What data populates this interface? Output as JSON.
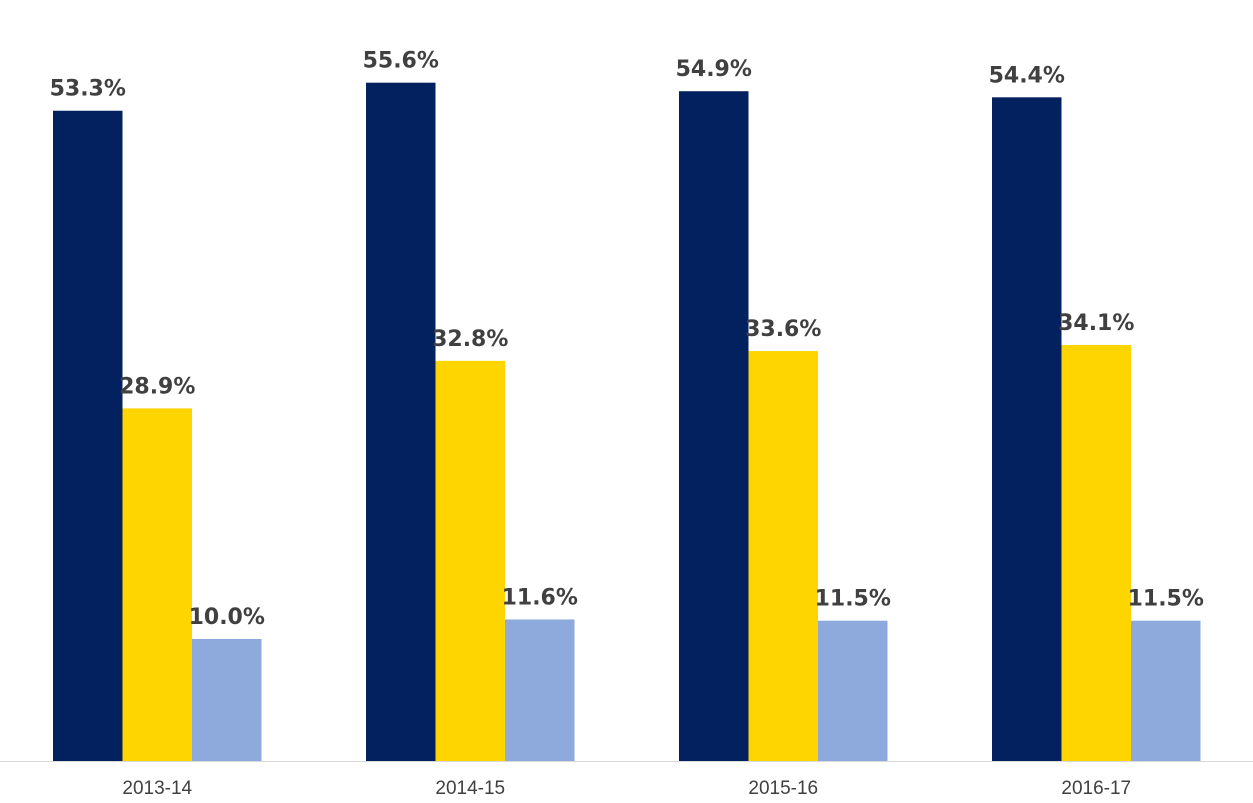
{
  "chart_data": {
    "type": "bar",
    "categories": [
      "2013-14",
      "2014-15",
      "2015-16",
      "2016-17"
    ],
    "series": [
      {
        "values": [
          53.3,
          55.6,
          54.9,
          54.4
        ],
        "color": "#02215E"
      },
      {
        "values": [
          28.9,
          32.8,
          33.6,
          34.1
        ],
        "color": "#FFD500"
      },
      {
        "values": [
          10.0,
          11.6,
          11.5,
          11.5
        ],
        "color": "#8EA9DB"
      }
    ],
    "data_labels": [
      [
        "53.3%",
        "55.6%",
        "54.9%",
        "54.4%"
      ],
      [
        "28.9%",
        "32.8%",
        "33.6%",
        "34.1%"
      ],
      [
        "10.0%",
        "11.6%",
        "11.5%",
        "11.5%"
      ]
    ],
    "title": "",
    "xlabel": "",
    "ylabel": "",
    "ylim": [
      0,
      60
    ],
    "grid": false,
    "legend": "none",
    "axis_color": "#D9D9D9"
  }
}
